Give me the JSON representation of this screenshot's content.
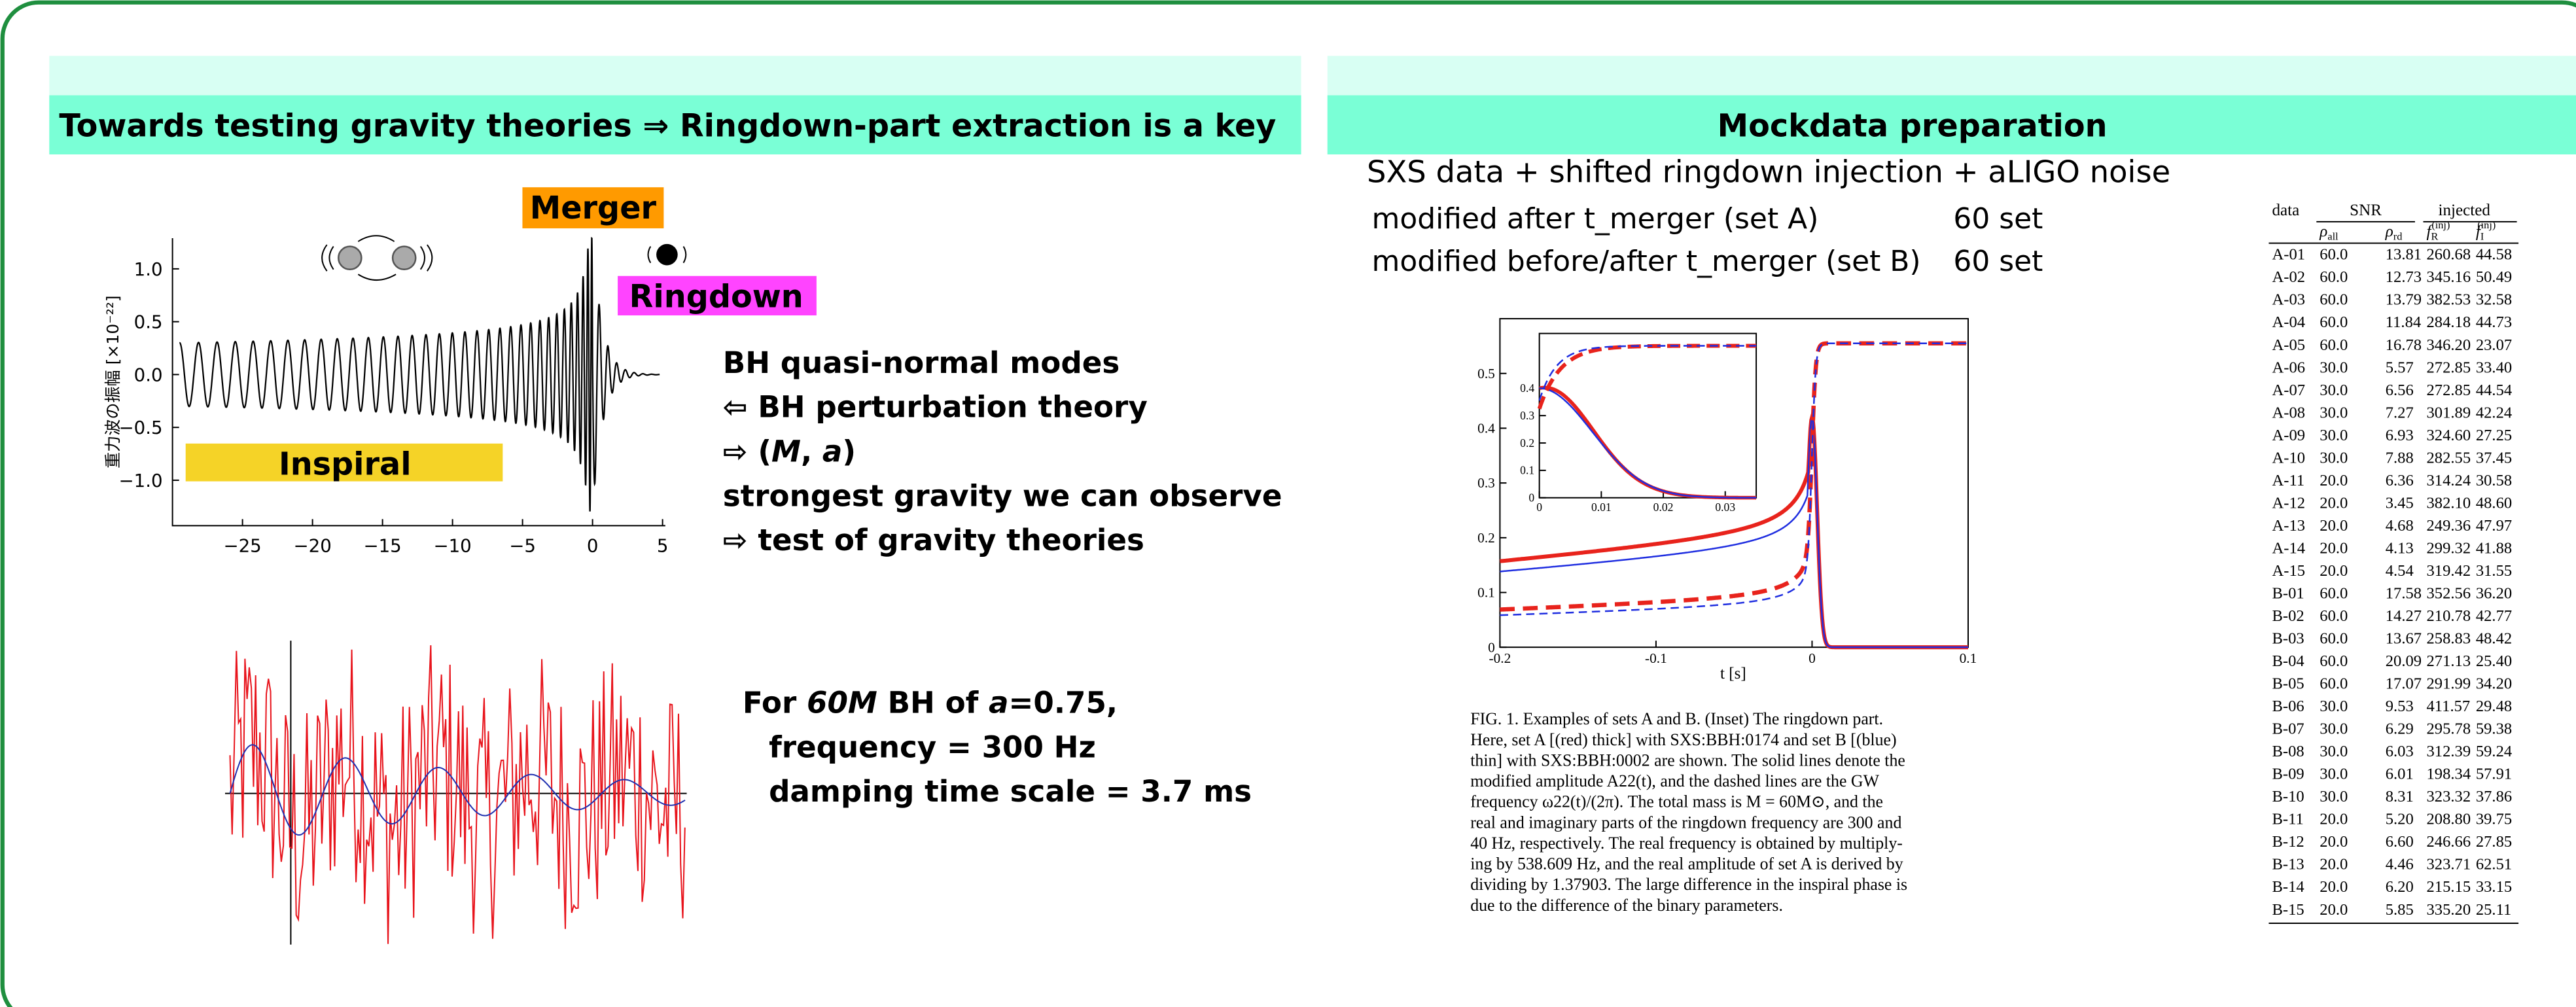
{
  "left": {
    "title": "Towards testing gravity theories ⇒   Ringdown-part extraction is a key",
    "labels": {
      "merger": "Merger",
      "ringdown": "Ringdown",
      "inspiral": "Inspiral"
    },
    "plot": {
      "ylabel": "重力波の振幅 [×10⁻²²]",
      "xlim": [
        -30,
        5.2
      ],
      "ylim": [
        -1.43,
        1.29
      ],
      "xticks": [
        {
          "value": -25,
          "label": "−25"
        },
        {
          "value": -20,
          "label": "−20"
        },
        {
          "value": -15,
          "label": "−15"
        },
        {
          "value": -10,
          "label": "−10"
        },
        {
          "value": -5,
          "label": "−5"
        },
        0,
        5
      ],
      "yticks": [
        {
          "value": 1,
          "label": "1.0"
        },
        0.5,
        {
          "value": 0,
          "label": "0.0"
        },
        {
          "value": -0.5,
          "label": "−0.5"
        },
        {
          "value": -1,
          "label": "−1.0"
        }
      ]
    },
    "points": [
      [
        {
          "text": "BH quasi-normal modes",
          "italic": false
        }
      ],
      [
        {
          "text": "⇦  BH perturbation theory",
          "italic": false
        }
      ],
      [
        {
          "text": "⇨  (",
          "italic": false
        },
        {
          "text": "M",
          "italic": true
        },
        {
          "text": ", ",
          "italic": false
        },
        {
          "text": "a",
          "italic": true
        },
        {
          "text": ")",
          "italic": false
        }
      ],
      [
        {
          "text": "strongest gravity we can observe",
          "italic": false
        }
      ],
      [
        {
          "text": "⇨  test of gravity theories",
          "italic": false
        }
      ]
    ],
    "example": [
      [
        {
          "text": "For ",
          "italic": false
        },
        {
          "text": "60M",
          "italic": true
        },
        {
          "text": " BH of ",
          "italic": false
        },
        {
          "text": "a",
          "italic": true
        },
        {
          "text": "=0.75,",
          "italic": false
        }
      ],
      [
        {
          "text": "frequency = 300 Hz",
          "italic": false
        }
      ],
      [
        {
          "text": "damping time scale = 3.7 ms",
          "italic": false
        }
      ]
    ]
  },
  "right": {
    "title": "Mockdata preparation",
    "subtitle": "SXS data + shifted ringdown injection + aLIGO noise",
    "sets": [
      {
        "label": "modified after t_merger (set A)",
        "count": "60 set"
      },
      {
        "label": "modified before/after t_merger (set B)",
        "count": "60 set"
      }
    ],
    "plot": {
      "xlabel": "t [s]",
      "xlim": [
        -0.2,
        0.1
      ],
      "ylim": [
        0,
        0.6
      ],
      "xticks": [
        -0.2,
        -0.1,
        0,
        0.1
      ],
      "yticks": [
        0,
        0.1,
        0.2,
        0.3,
        0.4,
        0.5
      ],
      "inset": {
        "xlim": [
          0,
          0.035
        ],
        "ylim": [
          0,
          0.6
        ],
        "xticks": [
          0,
          0.01,
          0.02,
          0.03
        ],
        "yticks": [
          0,
          0.1,
          0.2,
          0.3,
          0.4
        ]
      }
    },
    "caption": [
      "FIG. 1.   Examples of sets A and B. (Inset) The ringdown part.",
      "Here, set A [(red) thick] with SXS:BBH:0174 and set B [(blue)",
      "thin] with SXS:BBH:0002 are shown. The solid lines denote the",
      "modified amplitude A22(t), and the dashed lines are the GW",
      "frequency ω22(t)/(2π). The total mass is M = 60M⊙, and the",
      "real and imaginary parts of the ringdown frequency are 300 and",
      "40 Hz, respectively. The real frequency is obtained by multiply-",
      "ing by 538.609 Hz, and the real amplitude of set A is derived by",
      "dividing by 1.37903. The large difference in the inspiral phase is",
      "due to the difference of the binary parameters."
    ],
    "table": {
      "groups": [
        "data",
        "SNR",
        "injected"
      ],
      "columns": [
        {
          "base": "ρ",
          "sub": "all"
        },
        {
          "base": "ρ",
          "sub": "rd"
        },
        {
          "base": "f",
          "sub": "R",
          "sup": "(inj)"
        },
        {
          "base": "f",
          "sub": "I",
          "sup": "(inj)"
        }
      ],
      "rows": [
        [
          "A-01",
          "60.0",
          "13.81",
          "260.68",
          "44.58"
        ],
        [
          "A-02",
          "60.0",
          "12.73",
          "345.16",
          "50.49"
        ],
        [
          "A-03",
          "60.0",
          "13.79",
          "382.53",
          "32.58"
        ],
        [
          "A-04",
          "60.0",
          "11.84",
          "284.18",
          "44.73"
        ],
        [
          "A-05",
          "60.0",
          "16.78",
          "346.20",
          "23.07"
        ],
        [
          "A-06",
          "30.0",
          "5.57",
          "272.85",
          "33.40"
        ],
        [
          "A-07",
          "30.0",
          "6.56",
          "272.85",
          "44.54"
        ],
        [
          "A-08",
          "30.0",
          "7.27",
          "301.89",
          "42.24"
        ],
        [
          "A-09",
          "30.0",
          "6.93",
          "324.60",
          "27.25"
        ],
        [
          "A-10",
          "30.0",
          "7.88",
          "282.55",
          "37.45"
        ],
        [
          "A-11",
          "20.0",
          "6.36",
          "314.24",
          "30.58"
        ],
        [
          "A-12",
          "20.0",
          "3.45",
          "382.10",
          "48.60"
        ],
        [
          "A-13",
          "20.0",
          "4.68",
          "249.36",
          "47.97"
        ],
        [
          "A-14",
          "20.0",
          "4.13",
          "299.32",
          "41.88"
        ],
        [
          "A-15",
          "20.0",
          "4.54",
          "319.42",
          "31.55"
        ],
        [
          "B-01",
          "60.0",
          "17.58",
          "352.56",
          "36.20"
        ],
        [
          "B-02",
          "60.0",
          "14.27",
          "210.78",
          "42.77"
        ],
        [
          "B-03",
          "60.0",
          "13.67",
          "258.83",
          "48.42"
        ],
        [
          "B-04",
          "60.0",
          "20.09",
          "271.13",
          "25.40"
        ],
        [
          "B-05",
          "60.0",
          "17.07",
          "291.99",
          "34.20"
        ],
        [
          "B-06",
          "30.0",
          "9.53",
          "411.57",
          "29.48"
        ],
        [
          "B-07",
          "30.0",
          "6.29",
          "295.78",
          "59.38"
        ],
        [
          "B-08",
          "30.0",
          "6.03",
          "312.39",
          "59.24"
        ],
        [
          "B-09",
          "30.0",
          "6.01",
          "198.34",
          "57.91"
        ],
        [
          "B-10",
          "30.0",
          "8.31",
          "323.32",
          "37.86"
        ],
        [
          "B-11",
          "20.0",
          "5.20",
          "208.80",
          "39.75"
        ],
        [
          "B-12",
          "20.0",
          "6.60",
          "246.66",
          "27.85"
        ],
        [
          "B-13",
          "20.0",
          "4.46",
          "323.71",
          "62.51"
        ],
        [
          "B-14",
          "20.0",
          "6.20",
          "215.15",
          "33.15"
        ],
        [
          "B-15",
          "20.0",
          "5.85",
          "335.20",
          "25.11"
        ]
      ]
    }
  }
}
